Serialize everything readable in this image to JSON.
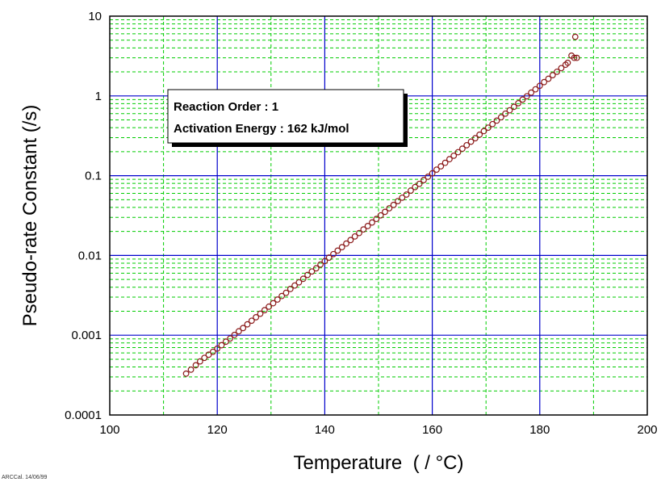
{
  "chart_data": {
    "type": "scatter",
    "xlabel": "Temperature  ( / °C)",
    "ylabel": "Pseudo-rate Constant (/s)",
    "x_scale": "linear",
    "y_scale": "log",
    "xlim": [
      100,
      200
    ],
    "ylim": [
      0.0001,
      10
    ],
    "x_ticks": [
      "100",
      "120",
      "140",
      "160",
      "180",
      "200"
    ],
    "y_ticks": [
      "0.0001",
      "0.001",
      "0.01",
      "0.1",
      "1",
      "10"
    ],
    "grid": true,
    "annotation": {
      "lines": [
        "Reaction Order : 1",
        "Activation Energy : 162 kJ/mol"
      ],
      "placement": "upper-left"
    },
    "series": [
      {
        "marker": "circle",
        "color": "#8b1a1a",
        "points": [
          [
            114.2,
            0.00033
          ],
          [
            115.1,
            0.00037
          ],
          [
            116.0,
            0.00042
          ],
          [
            116.8,
            0.00047
          ],
          [
            117.6,
            0.00052
          ],
          [
            118.4,
            0.00057
          ],
          [
            119.2,
            0.00062
          ],
          [
            120.0,
            0.00068
          ],
          [
            120.8,
            0.00075
          ],
          [
            121.6,
            0.00083
          ],
          [
            122.4,
            0.00091
          ],
          [
            123.2,
            0.00101
          ],
          [
            124.0,
            0.00112
          ],
          [
            124.8,
            0.00123
          ],
          [
            125.6,
            0.00137
          ],
          [
            126.4,
            0.00152
          ],
          [
            127.2,
            0.00168
          ],
          [
            128.0,
            0.00186
          ],
          [
            128.8,
            0.00206
          ],
          [
            129.6,
            0.00228
          ],
          [
            130.4,
            0.00252
          ],
          [
            131.2,
            0.0028
          ],
          [
            132.0,
            0.0031
          ],
          [
            132.8,
            0.0034
          ],
          [
            133.6,
            0.0038
          ],
          [
            134.4,
            0.0042
          ],
          [
            135.2,
            0.0046
          ],
          [
            136.0,
            0.0051
          ],
          [
            136.8,
            0.0057
          ],
          [
            137.6,
            0.0063
          ],
          [
            138.4,
            0.0069
          ],
          [
            139.2,
            0.0077
          ],
          [
            140.0,
            0.0085
          ],
          [
            140.8,
            0.0094
          ],
          [
            141.6,
            0.0104
          ],
          [
            142.4,
            0.0115
          ],
          [
            143.2,
            0.0127
          ],
          [
            144.0,
            0.0141
          ],
          [
            144.8,
            0.0156
          ],
          [
            145.6,
            0.0173
          ],
          [
            146.4,
            0.0191
          ],
          [
            147.2,
            0.0212
          ],
          [
            148.0,
            0.0234
          ],
          [
            148.8,
            0.0259
          ],
          [
            149.6,
            0.0287
          ],
          [
            150.4,
            0.0318
          ],
          [
            151.2,
            0.0352
          ],
          [
            152.0,
            0.039
          ],
          [
            152.8,
            0.043
          ],
          [
            153.6,
            0.048
          ],
          [
            154.4,
            0.053
          ],
          [
            155.2,
            0.058
          ],
          [
            156.0,
            0.065
          ],
          [
            156.8,
            0.072
          ],
          [
            157.6,
            0.079
          ],
          [
            158.4,
            0.088
          ],
          [
            159.2,
            0.097
          ],
          [
            160.0,
            0.107
          ],
          [
            160.8,
            0.119
          ],
          [
            161.6,
            0.131
          ],
          [
            162.4,
            0.145
          ],
          [
            163.2,
            0.161
          ],
          [
            164.0,
            0.178
          ],
          [
            164.8,
            0.197
          ],
          [
            165.6,
            0.218
          ],
          [
            166.4,
            0.241
          ],
          [
            167.2,
            0.267
          ],
          [
            168.0,
            0.295
          ],
          [
            168.8,
            0.327
          ],
          [
            169.6,
            0.362
          ],
          [
            170.4,
            0.4
          ],
          [
            171.2,
            0.443
          ],
          [
            172.0,
            0.49
          ],
          [
            172.8,
            0.54
          ],
          [
            173.6,
            0.6
          ],
          [
            174.4,
            0.66
          ],
          [
            175.2,
            0.73
          ],
          [
            176.0,
            0.81
          ],
          [
            176.8,
            0.9
          ],
          [
            177.6,
            0.99
          ],
          [
            178.4,
            1.1
          ],
          [
            179.2,
            1.21
          ],
          [
            180.0,
            1.34
          ],
          [
            180.8,
            1.49
          ],
          [
            181.6,
            1.64
          ],
          [
            182.4,
            1.82
          ],
          [
            183.2,
            2.01
          ],
          [
            184.0,
            2.23
          ],
          [
            184.8,
            2.46
          ],
          [
            185.2,
            2.6
          ],
          [
            185.9,
            3.2
          ],
          [
            186.4,
            3.0
          ],
          [
            186.9,
            3.0
          ],
          [
            186.6,
            5.5
          ]
        ]
      }
    ]
  },
  "footer": {
    "stamp": "ARCCal. 14/06/99"
  }
}
